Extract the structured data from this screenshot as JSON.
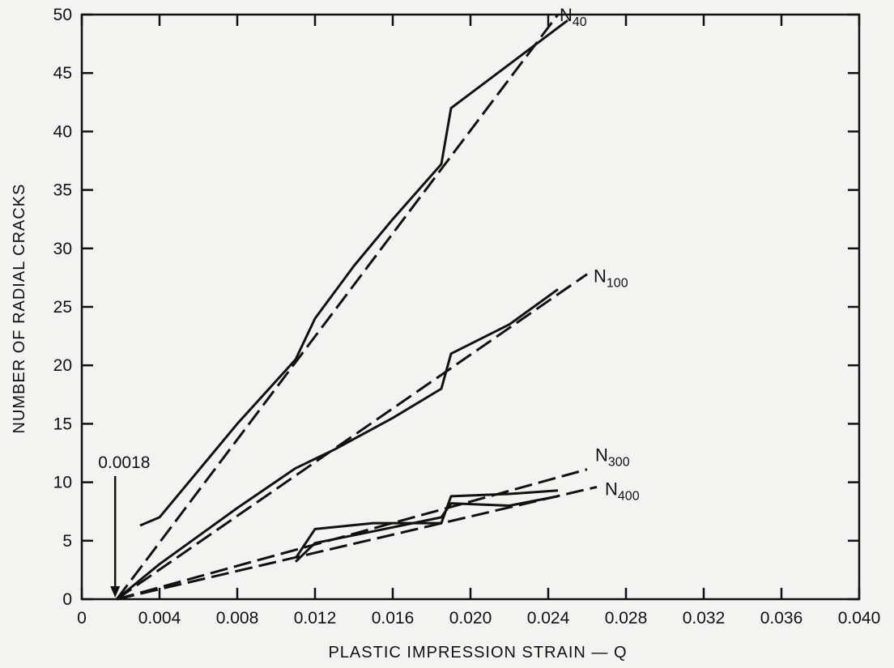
{
  "chart_data": {
    "type": "line",
    "title": "",
    "xlabel": "PLASTIC IMPRESSION STRAIN — Q",
    "ylabel": "NUMBER OF RADIAL CRACKS",
    "xlim": [
      0,
      0.04
    ],
    "ylim": [
      0,
      50
    ],
    "x_ticks": [
      0,
      0.004,
      0.008,
      0.012,
      0.016,
      0.02,
      0.024,
      0.028,
      0.032,
      0.036,
      0.04
    ],
    "x_tick_labels": [
      "0",
      "0.004",
      "0.008",
      "0.012",
      "0.016",
      "0.020",
      "0.024",
      "0.028",
      "0.032",
      "0.036",
      "0.040"
    ],
    "y_ticks": [
      0,
      5,
      10,
      15,
      20,
      25,
      30,
      35,
      40,
      45,
      50
    ],
    "y_tick_labels": [
      "0",
      "5",
      "10",
      "15",
      "20",
      "25",
      "30",
      "35",
      "40",
      "45",
      "50"
    ],
    "grid": false,
    "legend": "labels placed at line ends",
    "series": [
      {
        "name": "N40",
        "label_main": "N",
        "label_sub": "40",
        "measured": [
          [
            0.003,
            6.3
          ],
          [
            0.004,
            7.0
          ],
          [
            0.006,
            11.0
          ],
          [
            0.008,
            15.0
          ],
          [
            0.011,
            20.5
          ],
          [
            0.012,
            24.0
          ],
          [
            0.014,
            28.5
          ],
          [
            0.016,
            32.5
          ],
          [
            0.0185,
            37.2
          ],
          [
            0.019,
            42.0
          ],
          [
            0.021,
            44.5
          ],
          [
            0.023,
            47.0
          ],
          [
            0.025,
            49.5
          ]
        ],
        "fit": [
          [
            0.0018,
            0
          ],
          [
            0.0245,
            50
          ]
        ]
      },
      {
        "name": "N100",
        "label_main": "N",
        "label_sub": "100",
        "measured": [
          [
            0.0018,
            0
          ],
          [
            0.004,
            3.0
          ],
          [
            0.008,
            7.8
          ],
          [
            0.011,
            11.2
          ],
          [
            0.013,
            12.8
          ],
          [
            0.016,
            15.5
          ],
          [
            0.0185,
            18.0
          ],
          [
            0.019,
            21.0
          ],
          [
            0.022,
            23.5
          ],
          [
            0.0245,
            26.5
          ]
        ],
        "fit": [
          [
            0.0018,
            0
          ],
          [
            0.026,
            27.8
          ]
        ]
      },
      {
        "name": "N300",
        "label_main": "N",
        "label_sub": "300",
        "measured": [
          [
            0.011,
            3.5
          ],
          [
            0.012,
            6.0
          ],
          [
            0.015,
            6.5
          ],
          [
            0.0185,
            6.5
          ],
          [
            0.019,
            8.8
          ],
          [
            0.022,
            9.0
          ],
          [
            0.0245,
            9.3
          ]
        ],
        "fit": [
          [
            0.0018,
            0
          ],
          [
            0.026,
            11.1
          ]
        ]
      },
      {
        "name": "N400",
        "label_main": "N",
        "label_sub": "400",
        "measured": [
          [
            0.011,
            3.2
          ],
          [
            0.012,
            4.8
          ],
          [
            0.015,
            5.8
          ],
          [
            0.0185,
            7.0
          ],
          [
            0.019,
            8.2
          ],
          [
            0.022,
            8.0
          ],
          [
            0.0245,
            8.8
          ]
        ],
        "fit": [
          [
            0.0018,
            0
          ],
          [
            0.0265,
            9.6
          ]
        ]
      }
    ],
    "annotations": [
      {
        "text": "0.0018",
        "points_to": [
          0.0018,
          0
        ]
      }
    ]
  }
}
